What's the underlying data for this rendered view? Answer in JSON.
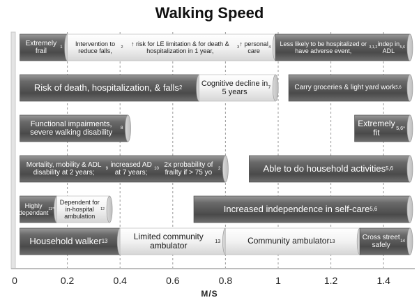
{
  "chart_data": {
    "type": "bar",
    "title": "Walking Speed",
    "xlabel": "M/S",
    "xlim": [
      0,
      1.5
    ],
    "x_ticks": [
      "0",
      "0.2",
      "0.4",
      "0.6",
      "0.8",
      "1",
      "1.2",
      "1.4"
    ],
    "grid": "vertical-dashed",
    "colors": {
      "dark": "#5a5a5a",
      "light": "#f4f4f4"
    },
    "rows": [
      {
        "name": "row-1",
        "segments": [
          {
            "start": 0.02,
            "end": 0.2,
            "shade": "dark",
            "size": 10,
            "parts": [
              "Extremely frail",
              {
                "sup": "1"
              }
            ]
          },
          {
            "start": 0.2,
            "end": 0.99,
            "shade": "light",
            "size": 9,
            "parts": [
              "Intervention to reduce falls,",
              {
                "sup": "2"
              },
              " ↑ risk for LE limitation & for death & hospitalization in 1 year,",
              {
                "sup": "3"
              },
              " ↑ personal care",
              {
                "sup": "4"
              }
            ]
          },
          {
            "start": 0.99,
            "end": 1.5,
            "shade": "dark",
            "size": 9,
            "parts": [
              "Less likely to be hospitalized or have adverse event,",
              {
                "sup": "3,1,2"
              },
              " indep in ADL",
              {
                "sup": "5,6"
              }
            ]
          }
        ]
      },
      {
        "name": "row-2",
        "segments": [
          {
            "start": 0.02,
            "end": 0.7,
            "shade": "dark",
            "size": 13,
            "parts": [
              "Risk of death, hospitalization, & falls",
              {
                "sup": "2"
              }
            ]
          },
          {
            "start": 0.7,
            "end": 0.99,
            "shade": "light",
            "size": 11,
            "parts": [
              "Cognitive decline in 5 years",
              {
                "sup": "7"
              }
            ]
          },
          {
            "start": 1.04,
            "end": 1.5,
            "shade": "dark",
            "size": 10,
            "parts": [
              "Carry groceries & light yard work",
              {
                "sup": "5,6"
              }
            ]
          }
        ]
      },
      {
        "name": "row-3",
        "segments": [
          {
            "start": 0.02,
            "end": 0.43,
            "shade": "dark",
            "size": 11,
            "parts": [
              "Functional impairments, severe walking disability",
              {
                "sup": "8"
              }
            ]
          },
          {
            "start": 1.29,
            "end": 1.5,
            "shade": "dark",
            "size": 12,
            "parts": [
              "Extremely fit",
              {
                "sup": "5,6*"
              }
            ]
          }
        ]
      },
      {
        "name": "row-4",
        "segments": [
          {
            "start": 0.02,
            "end": 0.8,
            "shade": "dark",
            "size": 10,
            "parts": [
              "Mortality, mobility & ADL disability at 2 years;",
              {
                "sup": "9"
              },
              " increased AD at 7 years;",
              {
                "sup": "10"
              },
              " 2x probability of frailty if > 75 yo",
              {
                "sup": "2"
              }
            ]
          },
          {
            "start": 0.89,
            "end": 1.5,
            "shade": "dark",
            "size": 13,
            "parts": [
              "Able to do household activities",
              {
                "sup": "5,6"
              }
            ]
          }
        ]
      },
      {
        "name": "row-5",
        "segments": [
          {
            "start": 0.02,
            "end": 0.16,
            "shade": "dark",
            "size": 9,
            "parts": [
              "Highly dependant",
              {
                "sup": "11**"
              }
            ]
          },
          {
            "start": 0.16,
            "end": 0.36,
            "shade": "light",
            "size": 9,
            "parts": [
              "Dependent for in-hospital ambulation",
              {
                "sup": "12"
              }
            ]
          },
          {
            "start": 0.68,
            "end": 1.5,
            "shade": "dark",
            "size": 13,
            "parts": [
              "Increased independence in self-care",
              {
                "sup": "5,6"
              }
            ]
          }
        ]
      },
      {
        "name": "row-6",
        "segments": [
          {
            "start": 0.02,
            "end": 0.4,
            "shade": "dark",
            "size": 13,
            "parts": [
              "Household walker",
              {
                "sup": "13"
              }
            ]
          },
          {
            "start": 0.4,
            "end": 0.8,
            "shade": "light",
            "size": 12,
            "parts": [
              "Limited community ambulator",
              {
                "sup": "13"
              }
            ]
          },
          {
            "start": 0.8,
            "end": 1.31,
            "shade": "light",
            "size": 12,
            "parts": [
              "Community ambulator",
              {
                "sup": "13"
              }
            ]
          },
          {
            "start": 1.31,
            "end": 1.5,
            "shade": "dark",
            "size": 10,
            "parts": [
              "Cross street safely",
              {
                "sup": "14"
              }
            ]
          }
        ]
      }
    ]
  }
}
